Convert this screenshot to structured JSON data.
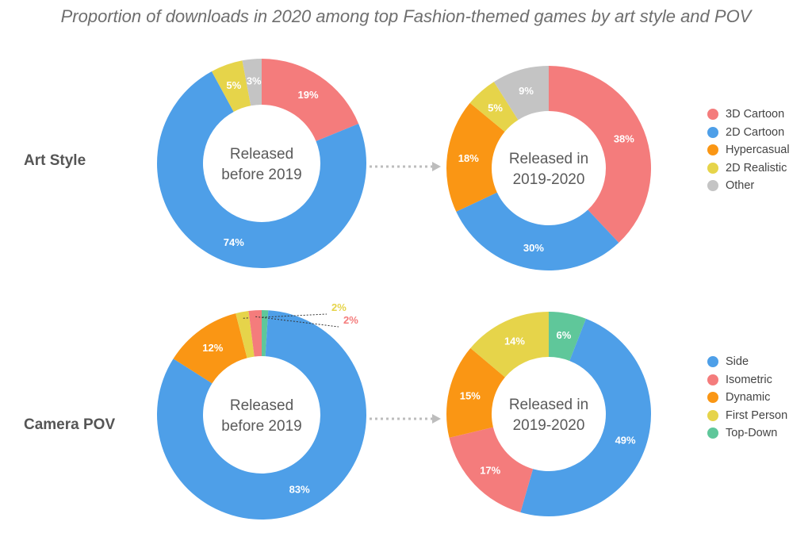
{
  "title": "Proportion of downloads in 2020 among top Fashion-themed games by art style and POV",
  "rows": {
    "art": {
      "label": "Art Style"
    },
    "pov": {
      "label": "Camera POV"
    }
  },
  "chart_data": [
    {
      "type": "pie",
      "id": "art-before",
      "center_label": [
        "Released",
        "before 2019"
      ],
      "slices": [
        {
          "name": "3D Cartoon",
          "value": 19,
          "label": "19%",
          "color": "#F47C7C"
        },
        {
          "name": "2D Cartoon",
          "value": 74,
          "label": "74%",
          "color": "#4E9FE8"
        },
        {
          "name": "2D Realistic",
          "value": 5,
          "label": "5%",
          "color": "#E6D44A"
        },
        {
          "name": "Other",
          "value": 3,
          "label": "3%",
          "color": "#C4C4C4"
        }
      ]
    },
    {
      "type": "pie",
      "id": "art-after",
      "center_label": [
        "Released in",
        "2019-2020"
      ],
      "slices": [
        {
          "name": "3D Cartoon",
          "value": 38,
          "label": "38%",
          "color": "#F47C7C"
        },
        {
          "name": "2D Cartoon",
          "value": 30,
          "label": "30%",
          "color": "#4E9FE8"
        },
        {
          "name": "Hypercasual",
          "value": 18,
          "label": "18%",
          "color": "#FA9614"
        },
        {
          "name": "2D Realistic",
          "value": 5,
          "label": "5%",
          "color": "#E6D44A"
        },
        {
          "name": "Other",
          "value": 9,
          "label": "9%",
          "color": "#C4C4C4"
        }
      ]
    },
    {
      "type": "pie",
      "id": "pov-before",
      "center_label": [
        "Released",
        "before 2019"
      ],
      "slices": [
        {
          "name": "Top-Down",
          "value": 1,
          "label": "",
          "color": "#5FC79A"
        },
        {
          "name": "Side",
          "value": 83,
          "label": "83%",
          "color": "#4E9FE8"
        },
        {
          "name": "Dynamic",
          "value": 12,
          "label": "12%",
          "color": "#FA9614"
        },
        {
          "name": "First Person",
          "value": 2,
          "label": "2%",
          "color": "#E6D44A",
          "callout": true
        },
        {
          "name": "Isometric",
          "value": 2,
          "label": "2%",
          "color": "#F47C7C",
          "callout": true
        }
      ]
    },
    {
      "type": "pie",
      "id": "pov-after",
      "center_label": [
        "Released in",
        "2019-2020"
      ],
      "slices": [
        {
          "name": "Top-Down",
          "value": 6,
          "label": "6%",
          "color": "#5FC79A"
        },
        {
          "name": "Side",
          "value": 49,
          "label": "49%",
          "color": "#4E9FE8"
        },
        {
          "name": "Isometric",
          "value": 17,
          "label": "17%",
          "color": "#F47C7C"
        },
        {
          "name": "Dynamic",
          "value": 15,
          "label": "15%",
          "color": "#FA9614"
        },
        {
          "name": "First Person",
          "value": 14,
          "label": "14%",
          "color": "#E6D44A"
        }
      ]
    }
  ],
  "legends": {
    "art": [
      {
        "label": "3D Cartoon",
        "color": "#F47C7C"
      },
      {
        "label": "2D Cartoon",
        "color": "#4E9FE8"
      },
      {
        "label": "Hypercasual",
        "color": "#FA9614"
      },
      {
        "label": "2D Realistic",
        "color": "#E6D44A"
      },
      {
        "label": "Other",
        "color": "#C4C4C4"
      }
    ],
    "pov": [
      {
        "label": "Side",
        "color": "#4E9FE8"
      },
      {
        "label": "Isometric",
        "color": "#F47C7C"
      },
      {
        "label": "Dynamic",
        "color": "#FA9614"
      },
      {
        "label": "First Person",
        "color": "#E6D44A"
      },
      {
        "label": "Top-Down",
        "color": "#5FC79A"
      }
    ]
  }
}
